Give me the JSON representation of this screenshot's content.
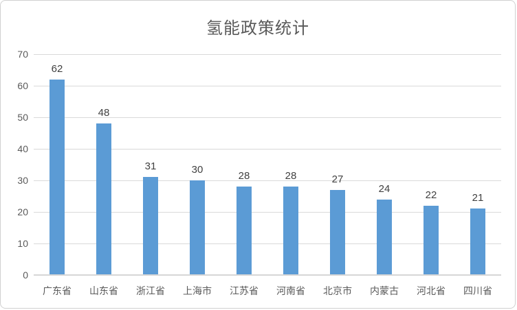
{
  "chart_data": {
    "type": "bar",
    "title": "氢能政策统计",
    "categories": [
      "广东省",
      "山东省",
      "浙江省",
      "上海市",
      "江苏省",
      "河南省",
      "北京市",
      "内蒙古",
      "河北省",
      "四川省"
    ],
    "values": [
      62,
      48,
      31,
      30,
      28,
      28,
      27,
      24,
      22,
      21
    ],
    "xlabel": "",
    "ylabel": "",
    "ylim": [
      0,
      70
    ],
    "ytick_step": 10,
    "grid": true,
    "legend": "none",
    "colors": {
      "bar": "#5b9bd5",
      "gridline": "#d9d9d9",
      "axis_line": "#d6d6d6",
      "title_text": "#595959",
      "axis_text": "#595959",
      "data_label_text": "#404040",
      "frame_border": "#d0d0d0",
      "background": "#ffffff"
    }
  }
}
